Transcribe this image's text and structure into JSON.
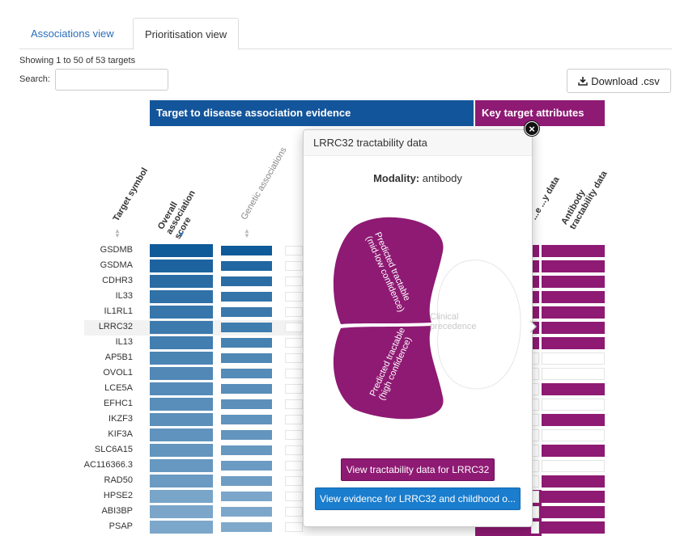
{
  "tabs": [
    "Associations view",
    "Prioritisation view"
  ],
  "showing": "Showing 1 to 50 of 53 targets",
  "search": {
    "label": "Search:",
    "value": ""
  },
  "download_label": "Download .csv",
  "section_headers": [
    "Target to disease association evidence",
    "Key target attributes"
  ],
  "columns": {
    "target_symbol": "Target symbol",
    "overall": "Overall association score",
    "genetic": "Genetic associations",
    "small_molecule_partial": "...e ...y data",
    "antibody": "Antibody tractability data"
  },
  "targets": [
    "GSDMB",
    "GSDMA",
    "CDHR3",
    "IL33",
    "IL1RL1",
    "LRRC32",
    "IL13",
    "AP5B1",
    "OVOL1",
    "LCE5A",
    "EFHC1",
    "IKZF3",
    "KIF3A",
    "SLC6A15",
    "AC116366.3",
    "RAD50",
    "HPSE2",
    "ABI3BP",
    "PSAP"
  ],
  "overall_scores": [
    1.0,
    0.93,
    0.86,
    0.82,
    0.78,
    0.75,
    0.72,
    0.67,
    0.64,
    0.62,
    0.6,
    0.58,
    0.56,
    0.54,
    0.52,
    0.5,
    0.42,
    0.41,
    0.4
  ],
  "genetic_scores": [
    1.0,
    0.9,
    0.85,
    0.8,
    0.76,
    0.73,
    0.7,
    0.65,
    0.62,
    0.6,
    0.58,
    0.56,
    0.54,
    0.52,
    0.5,
    0.48,
    0.41,
    0.4,
    0.39
  ],
  "small_molecule_flags": [
    1,
    1,
    1,
    1,
    1,
    1,
    1,
    0,
    0,
    0,
    0,
    0,
    0,
    0,
    0,
    0,
    0,
    0,
    0
  ],
  "antibody_flags": [
    1,
    1,
    1,
    1,
    1,
    1,
    1,
    0,
    0,
    1,
    0,
    1,
    0,
    1,
    0,
    1,
    1,
    1,
    1
  ],
  "popover": {
    "title": "LRRC32 tractability data",
    "modality_label": "Modality:",
    "modality_value": "antibody",
    "venn": [
      "Predicted tractable (mid-low confidence)",
      "Predicted tractable (high confidence)",
      "Clinical precedence"
    ],
    "venn_lines": [
      [
        "Predicted tractable",
        "(mid-low confidence)"
      ],
      [
        "Predicted tractable",
        "(high confidence)"
      ],
      [
        "Clinical",
        "precedence"
      ]
    ],
    "button_tractability": "View tractability data for LRRC32",
    "button_evidence": "View evidence for LRRC32 and childhood o...",
    "close": "×"
  },
  "colors": {
    "blue_header": "#13559b",
    "purple": "#8e1a73",
    "button_blue": "#1a7dce"
  }
}
